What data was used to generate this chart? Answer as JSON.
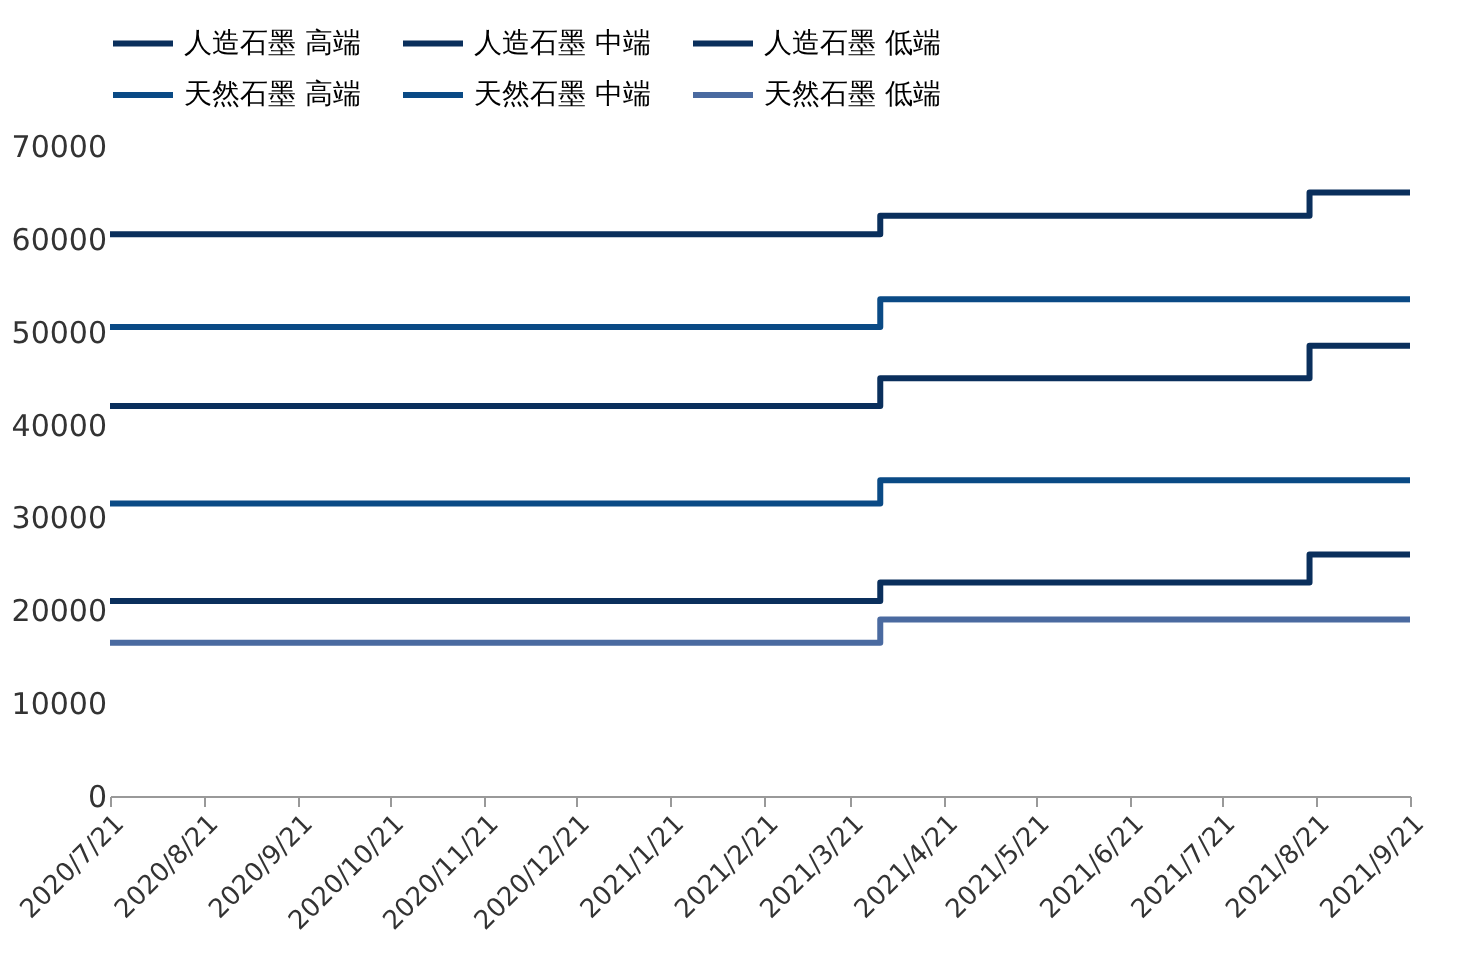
{
  "chart_data": {
    "type": "step",
    "x": [
      "2020-07-21",
      "2021-03-31",
      "2021-08-19",
      "2021-09-21"
    ],
    "series": [
      {
        "name": "人造石墨 高端",
        "color": "#0a2f5c",
        "values": [
          60500,
          62500,
          65000,
          65000
        ]
      },
      {
        "name": "人造石墨 中端",
        "color": "#0a2f5c",
        "values": [
          42000,
          45000,
          48500,
          48500
        ]
      },
      {
        "name": "人造石墨 低端",
        "color": "#0a2f5c",
        "values": [
          21000,
          23000,
          26000,
          26000
        ]
      },
      {
        "name": "天然石墨 高端",
        "color": "#0a4a85",
        "values": [
          50500,
          53500,
          53500,
          53500
        ]
      },
      {
        "name": "天然石墨 中端",
        "color": "#0a4a85",
        "values": [
          31500,
          34000,
          34000,
          34000
        ]
      },
      {
        "name": "天然石墨 低端",
        "color": "#4a6aa0",
        "values": [
          16500,
          19000,
          19000,
          19000
        ]
      }
    ],
    "xlim": [
      "2020-07-21",
      "2021-09-21"
    ],
    "xticks": [
      {
        "value": "2020-07-21",
        "label": "2020/7/21"
      },
      {
        "value": "2020-08-21",
        "label": "2020/8/21"
      },
      {
        "value": "2020-09-21",
        "label": "2020/9/21"
      },
      {
        "value": "2020-10-21",
        "label": "2020/10/21"
      },
      {
        "value": "2020-11-21",
        "label": "2020/11/21"
      },
      {
        "value": "2020-12-21",
        "label": "2020/12/21"
      },
      {
        "value": "2021-01-21",
        "label": "2021/1/21"
      },
      {
        "value": "2021-02-21",
        "label": "2021/2/21"
      },
      {
        "value": "2021-03-21",
        "label": "2021/3/21"
      },
      {
        "value": "2021-04-21",
        "label": "2021/4/21"
      },
      {
        "value": "2021-05-21",
        "label": "2021/5/21"
      },
      {
        "value": "2021-06-21",
        "label": "2021/6/21"
      },
      {
        "value": "2021-07-21",
        "label": "2021/7/21"
      },
      {
        "value": "2021-08-21",
        "label": "2021/8/21"
      },
      {
        "value": "2021-09-21",
        "label": "2021/9/21"
      }
    ],
    "ylim": [
      0,
      70000
    ],
    "yticks": [
      0,
      10000,
      20000,
      30000,
      40000,
      50000,
      60000,
      70000
    ],
    "grid": false,
    "legend": "top",
    "marker": "none",
    "line_style": "solid"
  }
}
